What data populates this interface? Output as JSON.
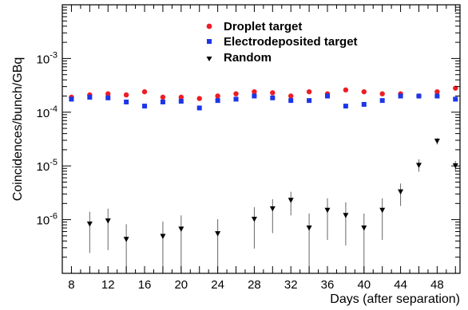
{
  "chart_data": {
    "type": "scatter",
    "title": "",
    "xlabel": "Days (after separation)",
    "ylabel": "Coincidences/bunch/GBq",
    "xlim": [
      7,
      50.5
    ],
    "ylim": [
      1e-07,
      0.01
    ],
    "yscale": "log",
    "x_ticks": [
      8,
      12,
      16,
      20,
      24,
      28,
      32,
      36,
      40,
      44,
      48
    ],
    "x_tick_labels": [
      "8",
      "12",
      "16",
      "20",
      "24",
      "28",
      "32",
      "36",
      "40",
      "44",
      "48"
    ],
    "y_tick_values": [
      1e-06,
      1e-05,
      0.0001,
      0.001
    ],
    "y_tick_labels": [
      {
        "base": "10",
        "exp": "-6"
      },
      {
        "base": "10",
        "exp": "-5"
      },
      {
        "base": "10",
        "exp": "-4"
      },
      {
        "base": "10",
        "exp": "-3"
      }
    ],
    "grid": false,
    "legend_position": "top-center",
    "series": [
      {
        "name": "Droplet target",
        "color": "#ee1c24",
        "marker": "circle",
        "x": [
          8,
          10,
          12,
          14,
          16,
          18,
          20,
          22,
          24,
          26,
          28,
          30,
          32,
          34,
          36,
          38,
          40,
          42,
          44,
          46,
          48,
          50
        ],
        "y": [
          0.00019,
          0.00021,
          0.00022,
          0.00021,
          0.00024,
          0.00019,
          0.00019,
          0.00018,
          0.0002,
          0.00022,
          0.00024,
          0.00023,
          0.0002,
          0.00024,
          0.00022,
          0.00026,
          0.00024,
          0.00022,
          0.00022,
          0.0002,
          0.00024,
          0.00028
        ]
      },
      {
        "name": "Electrodeposited target",
        "color": "#1c36e8",
        "marker": "square",
        "x": [
          8,
          10,
          12,
          14,
          16,
          18,
          20,
          22,
          24,
          26,
          28,
          30,
          32,
          34,
          36,
          38,
          40,
          42,
          44,
          46,
          48,
          50
        ],
        "y": [
          0.000175,
          0.00019,
          0.000185,
          0.000155,
          0.00013,
          0.000155,
          0.00016,
          0.00012,
          0.000165,
          0.000175,
          0.0002,
          0.000185,
          0.000165,
          0.000165,
          0.0002,
          0.00013,
          0.00014,
          0.000165,
          0.0002,
          0.0002,
          0.0002,
          0.000175
        ]
      },
      {
        "name": "Random",
        "color": "#000000",
        "marker": "triangle-down",
        "x": [
          10,
          12,
          14,
          18,
          20,
          24,
          28,
          30,
          32,
          34,
          36,
          38,
          40,
          42,
          44,
          46,
          48,
          50
        ],
        "y": [
          8.3e-07,
          9.5e-07,
          4.3e-07,
          4.9e-07,
          6.7e-07,
          5.5e-07,
          1.02e-06,
          1.6e-06,
          2.3e-06,
          7e-07,
          1.5e-06,
          1.2e-06,
          7e-07,
          1.5e-06,
          3.3e-06,
          1.03e-05,
          2.9e-05,
          1.01e-05
        ],
        "y_low": [
          2.4e-07,
          2.7e-07,
          1e-07,
          1e-07,
          1e-07,
          1e-07,
          2.9e-07,
          5.6e-07,
          1.2e-06,
          1e-07,
          4.2e-07,
          3.3e-07,
          1e-07,
          4.2e-07,
          1.8e-06,
          7.8e-06,
          2.5e-05,
          7.8e-06
        ],
        "y_high": [
          1.4e-06,
          1.6e-06,
          8.2e-07,
          9.2e-07,
          1.2e-06,
          1.02e-06,
          1.7e-06,
          2.4e-06,
          3.3e-06,
          1.3e-06,
          2.5e-06,
          2.1e-06,
          1.3e-06,
          2.5e-06,
          4.7e-06,
          1.33e-05,
          3.3e-05,
          1.24e-05
        ]
      }
    ]
  }
}
